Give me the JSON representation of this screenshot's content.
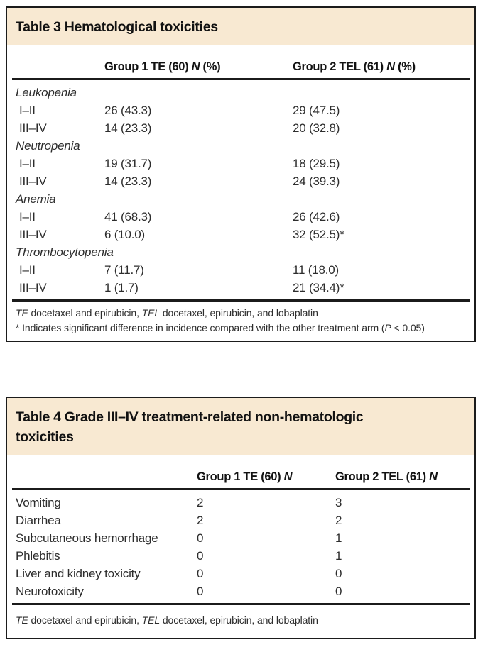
{
  "colors": {
    "header_bg": "#f8e9d2",
    "border": "#1b1b1b",
    "title_text": "#121212",
    "body_text": "#2d2d2d"
  },
  "table3": {
    "title": "Table 3 Hematological toxicities",
    "col1": {
      "pre": "Group 1 TE (60) ",
      "n": "N",
      "post": " (%)"
    },
    "col2": {
      "pre": "Group 2 TEL (61) ",
      "n": "N",
      "post": " (%)"
    },
    "rows": [
      {
        "label": "Leukopenia",
        "v1": "",
        "v2": ""
      },
      {
        "label": "I–II",
        "v1": "26 (43.3)",
        "v2": "29 (47.5)"
      },
      {
        "label": "III–IV",
        "v1": "14 (23.3)",
        "v2": "20 (32.8)"
      },
      {
        "label": "Neutropenia",
        "v1": "",
        "v2": ""
      },
      {
        "label": "I–II",
        "v1": "19 (31.7)",
        "v2": "18 (29.5)"
      },
      {
        "label": "III–IV",
        "v1": "14 (23.3)",
        "v2": "24 (39.3)"
      },
      {
        "label": "Anemia",
        "v1": "",
        "v2": ""
      },
      {
        "label": "I–II",
        "v1": "41 (68.3)",
        "v2": "26 (42.6)"
      },
      {
        "label": "III–IV",
        "v1": "6 (10.0)",
        "v2": "32 (52.5)*"
      },
      {
        "label": "Thrombocytopenia",
        "v1": "",
        "v2": ""
      },
      {
        "label": "I–II",
        "v1": "7 (11.7)",
        "v2": "11 (18.0)"
      },
      {
        "label": "III–IV",
        "v1": "1 (1.7)",
        "v2": "21 (34.4)*"
      }
    ],
    "footnote1": {
      "i1": "TE",
      "t1": " docetaxel and epirubicin, ",
      "i2": "TEL",
      "t2": " docetaxel, epirubicin, and lobaplatin"
    },
    "footnote2": {
      "t1": "* Indicates significant difference in incidence compared with the other treatment arm (",
      "i1": "P",
      "t2": " < 0.05)"
    }
  },
  "table4": {
    "title": "Table 4 Grade III–IV treatment-related non-hematologic toxicities",
    "col1": {
      "pre": "Group 1 TE (60) ",
      "n": "N",
      "post": ""
    },
    "col2": {
      "pre": "Group 2 TEL (61) ",
      "n": "N",
      "post": ""
    },
    "rows": [
      {
        "label": "Vomiting",
        "v1": "2",
        "v2": "3"
      },
      {
        "label": "Diarrhea",
        "v1": "2",
        "v2": "2"
      },
      {
        "label": "Subcutaneous hemorrhage",
        "v1": "0",
        "v2": "1"
      },
      {
        "label": "Phlebitis",
        "v1": "0",
        "v2": "1"
      },
      {
        "label": "Liver and kidney toxicity",
        "v1": "0",
        "v2": "0"
      },
      {
        "label": "Neurotoxicity",
        "v1": "0",
        "v2": "0"
      }
    ],
    "footnote1": {
      "i1": "TE",
      "t1": " docetaxel and epirubicin, ",
      "i2": "TEL",
      "t2": " docetaxel, epirubicin, and lobaplatin"
    }
  }
}
